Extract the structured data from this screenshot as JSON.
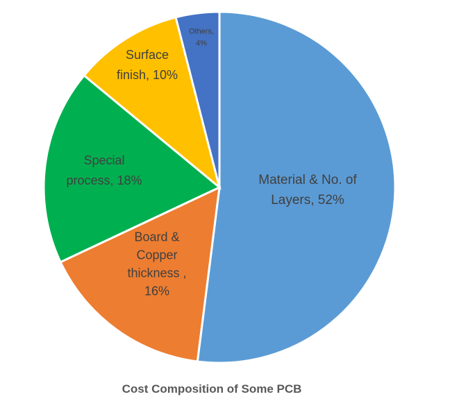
{
  "chart_data": {
    "type": "pie",
    "title": "Cost Composition of  Some PCB",
    "slices": [
      {
        "name": "Material & No. of Layers",
        "value": 52,
        "color": "#5B9BD5",
        "label_lines": [
          "Material & No. of",
          "Layers, 52%"
        ]
      },
      {
        "name": "Board & Copper thickness",
        "value": 16,
        "color": "#ED7D31",
        "label_lines": [
          "Board &",
          "Copper",
          "thickness ,",
          "16%"
        ]
      },
      {
        "name": "Special process",
        "value": 18,
        "color": "#00B050",
        "label_lines": [
          "Special",
          "process, 18%"
        ]
      },
      {
        "name": "Surface finish",
        "value": 10,
        "color": "#FFC000",
        "label_lines": [
          "Surface",
          "finish, 10%"
        ]
      },
      {
        "name": "Others",
        "value": 4,
        "color": "#4472C4",
        "label_lines": [
          "Others,",
          "4%"
        ]
      }
    ],
    "start_angle_deg": 0,
    "direction": "clockwise",
    "legend": "none"
  }
}
